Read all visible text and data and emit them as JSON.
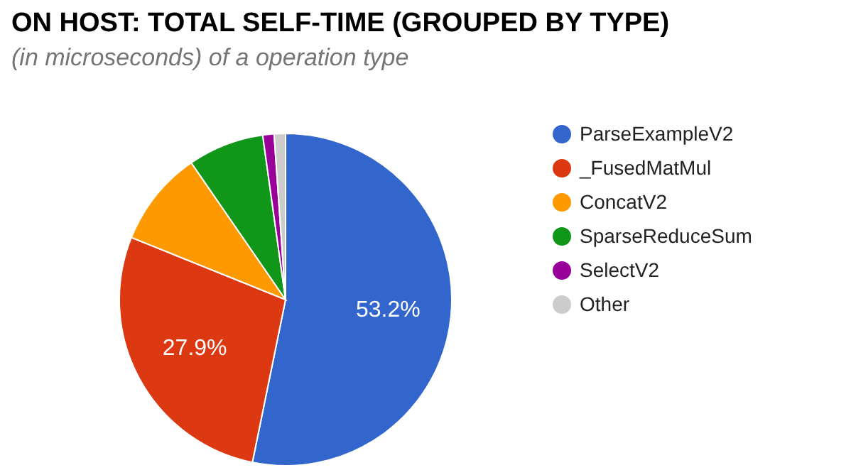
{
  "chart_data": {
    "type": "pie",
    "title": "ON HOST: TOTAL SELF-TIME (GROUPED BY TYPE)",
    "subtitle": "(in microseconds) of a operation type",
    "categories": [
      "ParseExampleV2",
      "_FusedMatMul",
      "ConcatV2",
      "SparseReduceSum",
      "SelectV2",
      "Other"
    ],
    "values": [
      53.2,
      27.9,
      9.3,
      7.4,
      1.1,
      1.1
    ],
    "colors": [
      "#3366cc",
      "#dc3912",
      "#ff9900",
      "#109618",
      "#990099",
      "#cccccc"
    ],
    "value_labels": [
      "53.2%",
      "27.9%",
      null,
      null,
      null,
      null
    ],
    "legend": "right"
  }
}
